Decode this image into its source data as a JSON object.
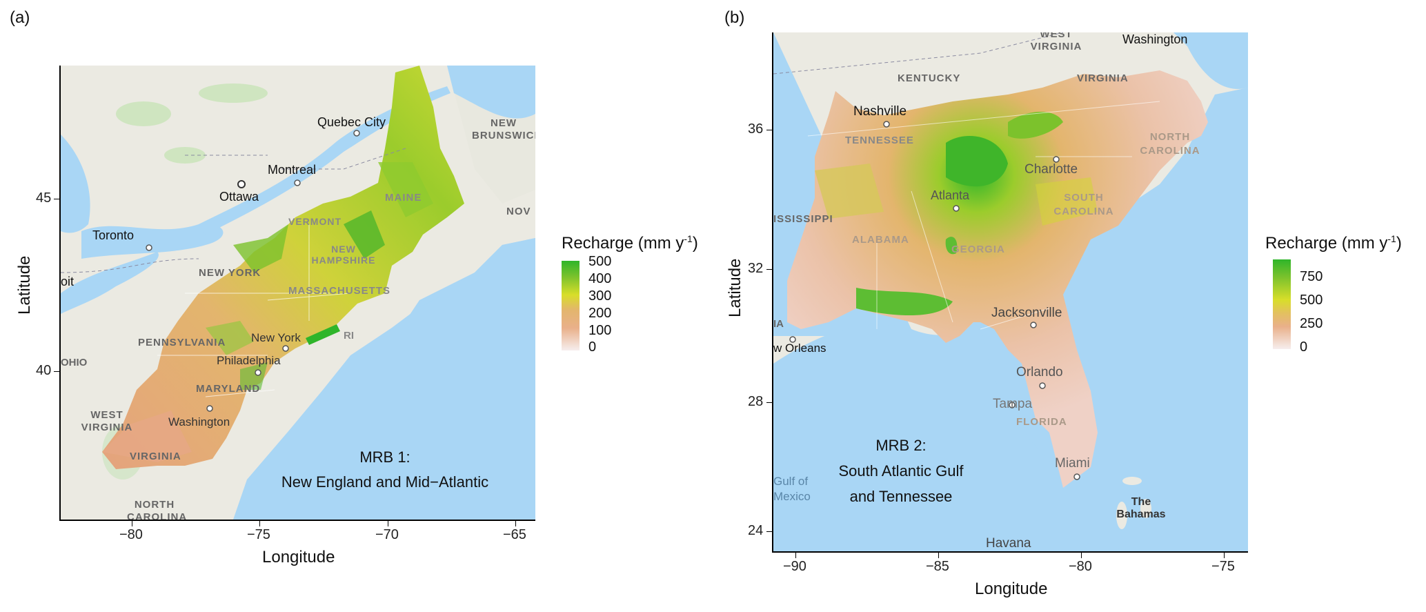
{
  "panels": [
    {
      "letter": "(a)",
      "xlabel": "Longitude",
      "ylabel": "Latitude",
      "xticks": [
        "−80",
        "−75",
        "−70",
        "−65"
      ],
      "yticks": [
        "45",
        "40"
      ],
      "annotation_line1": "MRB 1:",
      "annotation_line2": "New England and Mid−Atlantic",
      "legend_title": "Recharge (mm y",
      "legend_title_sup": "-1",
      "legend_title_close": ")",
      "legend_labels": [
        "500",
        "400",
        "300",
        "200",
        "100",
        "0"
      ],
      "cities": [
        "Quebec City",
        "Montreal",
        "Ottawa",
        "Toronto",
        "New York",
        "Philadelphia",
        "Washington",
        "NEW YORK",
        "PENNSYLVANIA",
        "MARYLAND",
        "WEST VIRGINIA",
        "VIRGINIA",
        "MAINE",
        "VERMONT",
        "NEW HAMPSHIRE",
        "MASSACHUSETTS",
        "NEW BRUNSWICK",
        "NORTH CAROLINA",
        "oit",
        "OHIO",
        "NOV",
        "RI"
      ]
    },
    {
      "letter": "(b)",
      "xlabel": "Longitude",
      "ylabel": "Latitude",
      "xticks": [
        "−90",
        "−85",
        "−80",
        "−75"
      ],
      "yticks": [
        "36",
        "32",
        "28",
        "24"
      ],
      "annotation_line1": "MRB 2:",
      "annotation_line2": "South Atlantic Gulf",
      "annotation_line3": "and Tennessee",
      "legend_title": "Recharge (mm y",
      "legend_title_sup": "-1",
      "legend_title_close": ")",
      "legend_labels": [
        "750",
        "500",
        "250",
        "0"
      ],
      "cities": [
        "Washington",
        "WEST VIRGINIA",
        "KENTUCKY",
        "VIRGINIA",
        "Nashville",
        "TENNESSEE",
        "NORTH CAROLINA",
        "Charlotte",
        "Atlanta",
        "SOUTH CAROLINA",
        "ISSISSIPPI",
        "ALABAMA",
        "GEORGIA",
        "Jacksonville",
        "w Orleans",
        "Orlando",
        "Tampa",
        "FLORIDA",
        "Miami",
        "Gulf of Mexico",
        "The Bahamas",
        "Havana",
        "IA"
      ]
    }
  ],
  "colors": {
    "ocean": "#a9d6f5",
    "land": "#ecebe4",
    "high": "#2fb52a",
    "mid": "#d8de2a",
    "low": "#e9b08a",
    "zero": "#f6eeee"
  }
}
